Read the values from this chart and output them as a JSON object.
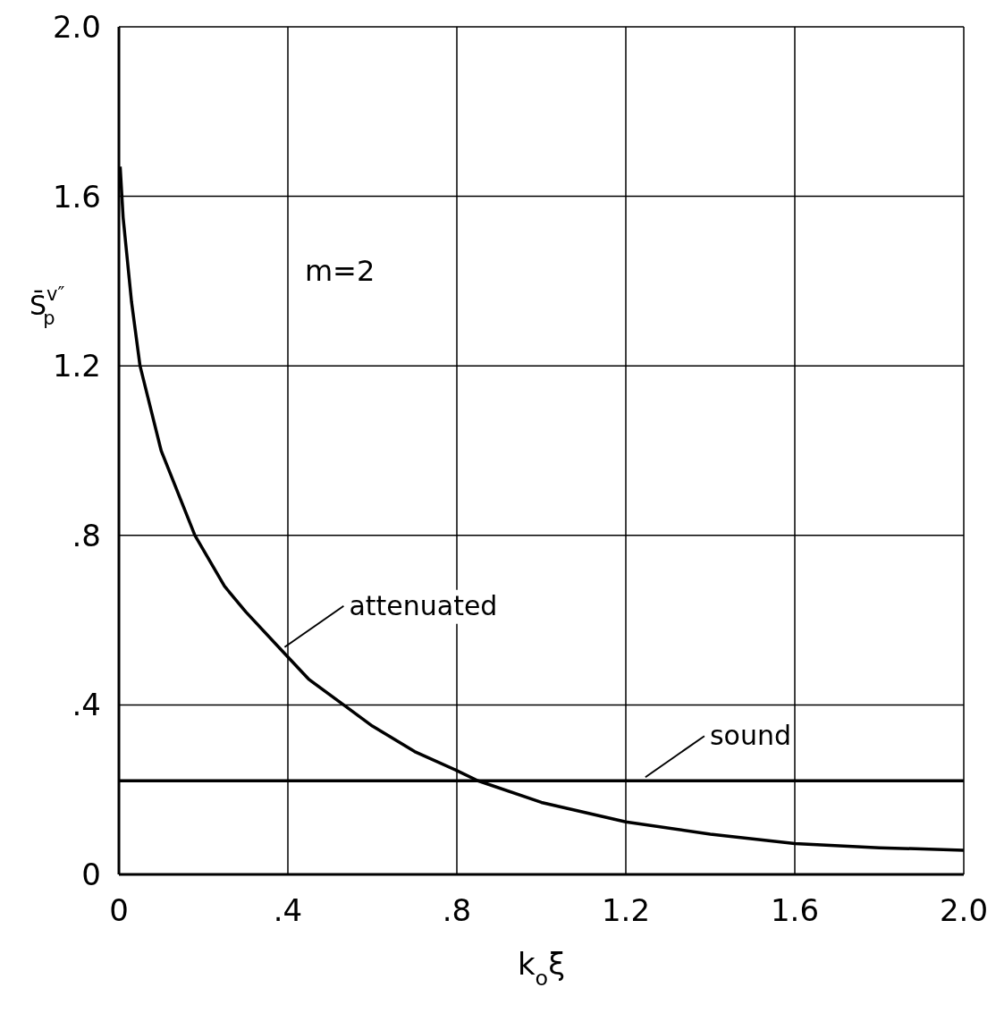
{
  "chart_data": {
    "type": "line",
    "xlabel": "k$_{o}$ξ",
    "ylabel": "S̄$^{v″}$$_{p}$",
    "annotations": [
      "m=2"
    ],
    "series": [
      {
        "name": "attenuated",
        "color": "#000000",
        "x": [
          0.003,
          0.01,
          0.03,
          0.05,
          0.1,
          0.18,
          0.25,
          0.3,
          0.386,
          0.45,
          0.532,
          0.6,
          0.7,
          0.8,
          0.85,
          1.0,
          1.2,
          1.4,
          1.6,
          1.8,
          2.0
        ],
        "values": [
          1.67,
          1.55,
          1.35,
          1.2,
          1.0,
          0.8,
          0.68,
          0.62,
          0.528,
          0.46,
          0.4,
          0.35,
          0.29,
          0.245,
          0.221,
          0.17,
          0.124,
          0.095,
          0.073,
          0.063,
          0.057
        ]
      },
      {
        "name": "sound",
        "color": "#000000",
        "x": [
          0,
          2.0
        ],
        "values": [
          0.221,
          0.221
        ]
      }
    ],
    "xlim": [
      0,
      2.0
    ],
    "ylim": [
      0,
      2.0
    ],
    "xticks": [
      0,
      {
        "value": 0.4,
        "label": ".4"
      },
      {
        "value": 0.8,
        "label": ".8"
      },
      1.2,
      1.6,
      {
        "value": 2.0,
        "label": "2.0"
      }
    ],
    "yticks": [
      0,
      {
        "value": 0.4,
        "label": ".4"
      },
      {
        "value": 0.8,
        "label": ".8"
      },
      1.2,
      1.6,
      {
        "value": 2.0,
        "label": "2.0"
      }
    ],
    "grid": true,
    "legend": false,
    "marker": "none",
    "line_style": "solid"
  }
}
